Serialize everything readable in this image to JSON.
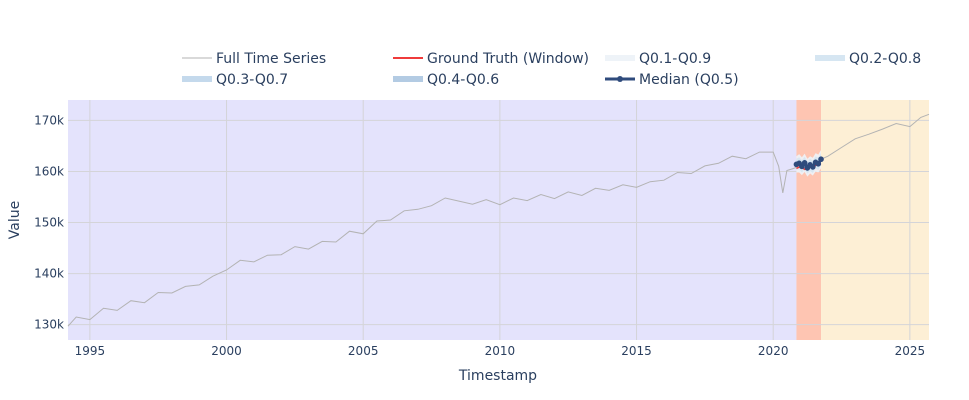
{
  "chart_data": {
    "type": "line",
    "xlabel": "Timestamp",
    "ylabel": "Value",
    "xlim": [
      1994.2,
      2025.7
    ],
    "ylim": [
      127000,
      174000
    ],
    "x_ticks": [
      1995,
      2000,
      2005,
      2010,
      2015,
      2020,
      2025
    ],
    "y_ticks": [
      130000,
      140000,
      150000,
      160000,
      170000
    ],
    "y_tick_labels": [
      "130k",
      "140k",
      "150k",
      "160k",
      "170k"
    ],
    "grid": true,
    "legend_position": "top",
    "regions": [
      {
        "from": 1994.2,
        "to": 2020.85,
        "color": "#e4e3fc"
      },
      {
        "from": 2020.85,
        "to": 2021.75,
        "color": "#fec5b2"
      },
      {
        "from": 2021.75,
        "to": 2025.7,
        "color": "#fdefd5"
      }
    ],
    "legend": [
      {
        "label": "Full Time Series",
        "color": "#b3b3b3",
        "style": "thin"
      },
      {
        "label": "Ground Truth (Window)",
        "color": "#ef3b3b",
        "style": "line"
      },
      {
        "label": "Q0.1-Q0.9",
        "color": "#eef3f8",
        "style": "band"
      },
      {
        "label": "Q0.2-Q0.8",
        "color": "#d6e6f2",
        "style": "band"
      },
      {
        "label": "Q0.3-Q0.7",
        "color": "#c4d9ec",
        "style": "band"
      },
      {
        "label": "Q0.4-Q0.6",
        "color": "#b3cbe3",
        "style": "band"
      },
      {
        "label": "Median (Q0.5)",
        "color": "#2f4b7c",
        "style": "marker"
      }
    ],
    "series": [
      {
        "name": "Full Time Series",
        "color": "#b3b3b3",
        "x": [
          1994.2,
          1994.5,
          1995.0,
          1995.5,
          1996.0,
          1996.5,
          1997.0,
          1997.5,
          1998.0,
          1998.5,
          1999.0,
          1999.5,
          2000.0,
          2000.5,
          2001.0,
          2001.5,
          2002.0,
          2002.5,
          2003.0,
          2003.5,
          2004.0,
          2004.5,
          2005.0,
          2005.5,
          2006.0,
          2006.5,
          2007.0,
          2007.5,
          2008.0,
          2008.5,
          2009.0,
          2009.5,
          2010.0,
          2010.5,
          2011.0,
          2011.5,
          2012.0,
          2012.5,
          2013.0,
          2013.5,
          2014.0,
          2014.5,
          2015.0,
          2015.5,
          2016.0,
          2016.5,
          2017.0,
          2017.5,
          2018.0,
          2018.5,
          2019.0,
          2019.5,
          2020.0,
          2020.2,
          2020.35,
          2020.5,
          2020.7,
          2021.0,
          2021.5,
          2022.0,
          2022.5,
          2023.0,
          2023.5,
          2024.0,
          2024.5,
          2025.0,
          2025.4,
          2025.7
        ],
        "values": [
          129700,
          131500,
          131000,
          133200,
          132800,
          134700,
          134300,
          136300,
          136200,
          137500,
          137800,
          139500,
          140700,
          142600,
          142300,
          143600,
          143700,
          145300,
          144800,
          146300,
          146200,
          148300,
          147800,
          150300,
          150500,
          152300,
          152600,
          153300,
          154800,
          154200,
          153600,
          154500,
          153500,
          154800,
          154300,
          155500,
          154700,
          156000,
          155300,
          156700,
          156300,
          157400,
          156900,
          158000,
          158300,
          159800,
          159600,
          161100,
          161600,
          163000,
          162500,
          163800,
          163800,
          161000,
          155800,
          160200,
          160500,
          161100,
          161800,
          163000,
          164700,
          166400,
          167300,
          168300,
          169400,
          168800,
          170600,
          171200
        ]
      },
      {
        "name": "Ground Truth (Window)",
        "color": "#ef3b3b",
        "x": [
          2020.85,
          2021.0,
          2021.15,
          2021.3,
          2021.45,
          2021.6,
          2021.75
        ],
        "values": [
          160600,
          161000,
          160400,
          160900,
          160700,
          161400,
          161500
        ]
      },
      {
        "name": "Median (Q0.5)",
        "color": "#2f4b7c",
        "x": [
          2020.85,
          2020.95,
          2021.05,
          2021.15,
          2021.25,
          2021.35,
          2021.45,
          2021.55,
          2021.65,
          2021.75
        ],
        "values": [
          161400,
          161600,
          161000,
          161700,
          160700,
          161300,
          160900,
          161800,
          161500,
          162400
        ],
        "bands": [
          {
            "name": "Q0.1-Q0.9",
            "lower": [
              159800,
              159800,
              159300,
              159900,
              159000,
              159600,
              159200,
              160000,
              159800,
              160600
            ],
            "upper": [
              163000,
              163400,
              162800,
              163500,
              162500,
              163000,
              162700,
              163600,
              163300,
              164200
            ]
          },
          {
            "name": "Q0.2-Q0.8",
            "lower": [
              160300,
              160400,
              159800,
              160500,
              159600,
              160100,
              159700,
              160600,
              160300,
              161200
            ],
            "upper": [
              162500,
              162800,
              162200,
              162900,
              161900,
              162500,
              162100,
              163000,
              162700,
              163600
            ]
          },
          {
            "name": "Q0.3-Q0.7",
            "lower": [
              160700,
              160800,
              160300,
              160900,
              160000,
              160600,
              160200,
              161100,
              160800,
              161700
            ],
            "upper": [
              162100,
              162300,
              161700,
              162400,
              161400,
              162000,
              161600,
              162500,
              162200,
              163100
            ]
          },
          {
            "name": "Q0.4-Q0.6",
            "lower": [
              161100,
              161200,
              160600,
              161300,
              160400,
              160900,
              160500,
              161400,
              161100,
              162000
            ],
            "upper": [
              161700,
              161900,
              161300,
              162000,
              161000,
              161600,
              161200,
              162100,
              161800,
              162700
            ]
          }
        ]
      }
    ]
  }
}
